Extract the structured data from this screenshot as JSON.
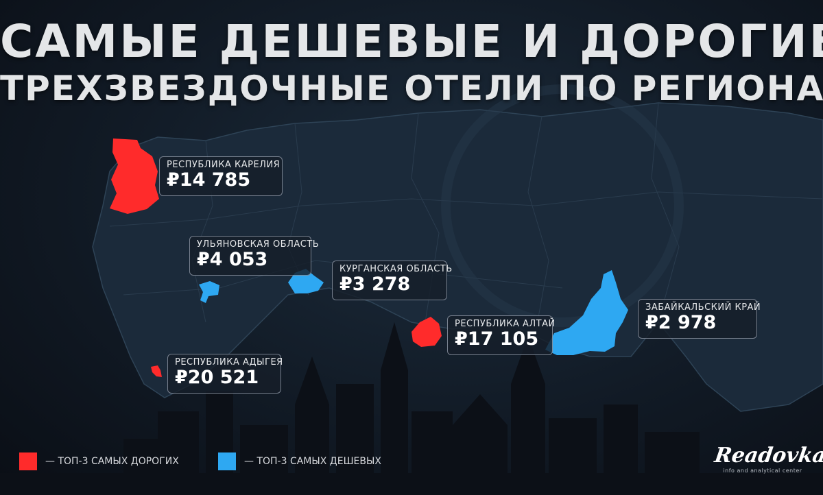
{
  "title": {
    "line1": "САМЫЕ ДЕШЕВЫЕ И ДОРОГИЕ",
    "line2": "ТРЕХЗВЕЗДОЧНЫЕ ОТЕЛИ ПО РЕГИОНАМ"
  },
  "colors": {
    "expensive": "#ff2b2b",
    "cheap": "#2ea8f2",
    "background": "#111a25"
  },
  "regions": [
    {
      "name": "РЕСПУБЛИКА КАРЕЛИЯ",
      "price": "₽14 785",
      "category": "expensive"
    },
    {
      "name": "УЛЬЯНОВСКАЯ ОБЛАСТЬ",
      "price": "₽4 053",
      "category": "cheap"
    },
    {
      "name": "КУРГАНСКАЯ ОБЛАСТЬ",
      "price": "₽3 278",
      "category": "cheap"
    },
    {
      "name": "РЕСПУБЛИКА АЛТАЙ",
      "price": "₽17 105",
      "category": "expensive"
    },
    {
      "name": "ЗАБАЙКАЛЬСКИЙ КРАЙ",
      "price": "₽2 978",
      "category": "cheap"
    },
    {
      "name": "РЕСПУБЛИКА АДЫГЕЯ",
      "price": "₽20 521",
      "category": "expensive"
    }
  ],
  "legend": {
    "expensive": "— ТОП-3 САМЫХ ДОРОГИХ",
    "cheap": "— ТОП-3 САМЫХ ДЕШЕВЫХ"
  },
  "logo": {
    "name": "Readovka",
    "tagline": "info and analytical center"
  }
}
